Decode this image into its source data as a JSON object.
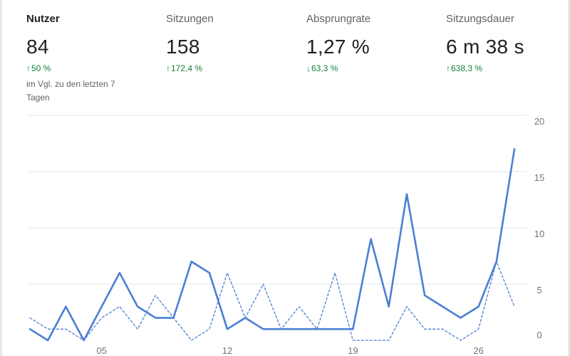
{
  "metrics": [
    {
      "label": "Nutzer",
      "value": "84",
      "arrow": "↑",
      "change": "50 %",
      "note": "im Vgl. zu den letzten 7 Tagen",
      "active": true
    },
    {
      "label": "Sitzungen",
      "value": "158",
      "arrow": "↑",
      "change": "172,4 %",
      "active": false
    },
    {
      "label": "Absprungrate",
      "value": "1,27 %",
      "arrow": "↓",
      "change": "63,3 %",
      "active": false
    },
    {
      "label": "Sitzungsdauer",
      "value": "6 m 38 s",
      "arrow": "↑",
      "change": "638,3 %",
      "active": false
    }
  ],
  "colors": {
    "line": "#4a7fd4",
    "grid": "#e6e6e6",
    "positive": "#188038"
  },
  "chart_data": {
    "type": "line",
    "x": [
      "01",
      "02",
      "03",
      "04",
      "05",
      "06",
      "07",
      "08",
      "09",
      "10",
      "11",
      "12",
      "13",
      "14",
      "15",
      "16",
      "17",
      "18",
      "19",
      "20",
      "21",
      "22",
      "23",
      "24",
      "25",
      "26",
      "27",
      "28"
    ],
    "x_tick_labels": [
      "05",
      "12",
      "19",
      "26"
    ],
    "y_tick_labels": [
      "0",
      "5",
      "10",
      "15",
      "20"
    ],
    "ylim": [
      0,
      20
    ],
    "grid": true,
    "y_axis_position": "right",
    "series": [
      {
        "style": "solid",
        "values": [
          1,
          0,
          3,
          0,
          3,
          6,
          3,
          2,
          2,
          7,
          6,
          1,
          2,
          1,
          1,
          1,
          1,
          1,
          1,
          9,
          3,
          13,
          4,
          3,
          2,
          3,
          7,
          17
        ]
      },
      {
        "style": "dashed",
        "values": [
          2,
          1,
          1,
          0,
          2,
          3,
          1,
          4,
          2,
          0,
          1,
          6,
          2,
          5,
          1,
          3,
          1,
          6,
          0,
          0,
          0,
          3,
          1,
          1,
          0,
          1,
          7,
          3
        ]
      }
    ]
  }
}
